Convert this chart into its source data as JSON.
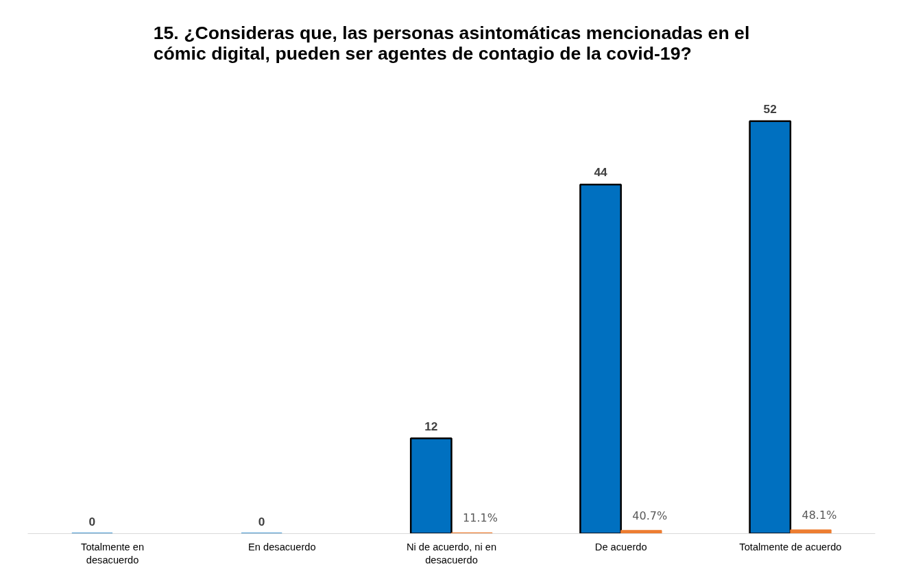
{
  "chart_data": {
    "type": "bar",
    "title": "15. ¿Consideras que, las personas asintomáticas mencionadas en el cómic digital, pueden ser agentes de contagio de la covid-19?",
    "categories": [
      "Totalmente en desacuerdo",
      "En desacuerdo",
      "Ni de acuerdo, ni en desacuerdo",
      "De acuerdo",
      "Totalmente de acuerdo"
    ],
    "series": [
      {
        "color": "#0070c0",
        "values": [
          0,
          0,
          12,
          44,
          52
        ],
        "value_labels": [
          "0",
          "0",
          "12",
          "44",
          "52"
        ]
      },
      {
        "color": "#ed7d31",
        "values": [
          0,
          0,
          0.111,
          0.407,
          0.481
        ],
        "value_labels": [
          null,
          null,
          "11.1%",
          "40.7%",
          "48.1%"
        ]
      }
    ],
    "tick_labels": "x",
    "grid": false
  }
}
